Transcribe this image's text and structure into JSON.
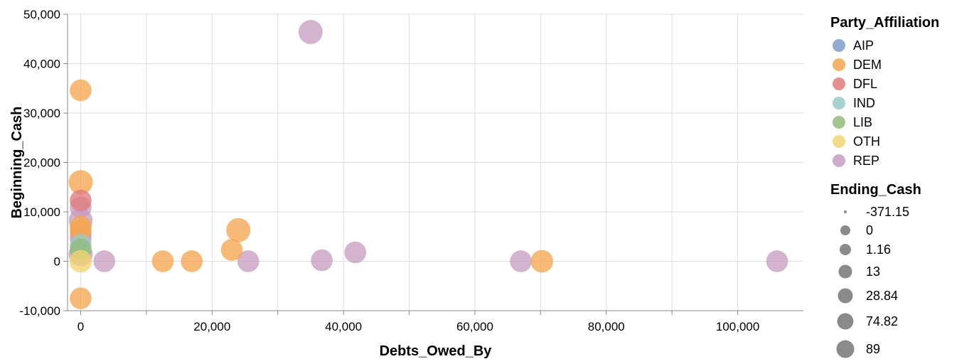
{
  "chart_data": {
    "type": "scatter",
    "xlabel": "Debts_Owed_By",
    "ylabel": "Beginning_Cash",
    "xlim": [
      -2000,
      110000
    ],
    "ylim": [
      -10000,
      50000
    ],
    "x_ticks": [
      0,
      20000,
      40000,
      60000,
      80000,
      100000
    ],
    "x_tick_labels": [
      "0",
      "20,000",
      "40,000",
      "60,000",
      "80,000",
      "100,000"
    ],
    "y_ticks": [
      -10000,
      0,
      10000,
      20000,
      30000,
      40000,
      50000
    ],
    "y_tick_labels": [
      "-10,000",
      "0",
      "10,000",
      "20,000",
      "30,000",
      "40,000",
      "50,000"
    ],
    "grid": true,
    "color_legend": {
      "title": "Party_Affiliation",
      "position": "right",
      "entries": [
        {
          "label": "AIP",
          "color": "#7f9dc9"
        },
        {
          "label": "DEM",
          "color": "#f3a64f"
        },
        {
          "label": "DFL",
          "color": "#e07b7b"
        },
        {
          "label": "IND",
          "color": "#96cac9"
        },
        {
          "label": "LIB",
          "color": "#8fbc7a"
        },
        {
          "label": "OTH",
          "color": "#f2d46e"
        },
        {
          "label": "REP",
          "color": "#c79ec0"
        }
      ]
    },
    "size_legend": {
      "title": "Ending_Cash",
      "position": "right",
      "entries": [
        {
          "label": "-371.15",
          "value": -371.15
        },
        {
          "label": "0",
          "value": 0
        },
        {
          "label": "1.16",
          "value": 1.16
        },
        {
          "label": "13",
          "value": 13
        },
        {
          "label": "28.84",
          "value": 28.84
        },
        {
          "label": "74.82",
          "value": 74.82
        },
        {
          "label": "89",
          "value": 89
        }
      ]
    },
    "series": [
      {
        "name": "REP",
        "points": [
          {
            "x": 35000,
            "y": 46400,
            "size": 89
          },
          {
            "x": 0,
            "y": 8300,
            "size": 74.82
          },
          {
            "x": 0,
            "y": 1400,
            "size": 89
          },
          {
            "x": 0,
            "y": 10900,
            "size": 1.16
          },
          {
            "x": 0,
            "y": 5500,
            "size": 1.16
          },
          {
            "x": 0,
            "y": 4500,
            "size": 1.16
          },
          {
            "x": 3600,
            "y": 0,
            "size": 1.16
          },
          {
            "x": 25500,
            "y": 0,
            "size": 1.16
          },
          {
            "x": 36700,
            "y": 200,
            "size": 1.16
          },
          {
            "x": 41800,
            "y": 1800,
            "size": 1.16
          },
          {
            "x": 67000,
            "y": 0,
            "size": 1.16
          },
          {
            "x": 106000,
            "y": 0,
            "size": 1.16
          }
        ]
      },
      {
        "name": "DEM",
        "points": [
          {
            "x": 0,
            "y": 34600,
            "size": 0
          },
          {
            "x": 0,
            "y": 16000,
            "size": 89
          },
          {
            "x": 24000,
            "y": 6300,
            "size": 89
          },
          {
            "x": 0,
            "y": 7000,
            "size": 1.16
          },
          {
            "x": 0,
            "y": 6200,
            "size": 1.16
          },
          {
            "x": 23000,
            "y": 2300,
            "size": 1.16
          },
          {
            "x": 12500,
            "y": 0,
            "size": 1.16
          },
          {
            "x": 16900,
            "y": 0,
            "size": 1.16
          },
          {
            "x": 70200,
            "y": 0,
            "size": 28.84
          },
          {
            "x": 0,
            "y": -7500,
            "size": 0
          }
        ]
      },
      {
        "name": "DFL",
        "points": [
          {
            "x": 0,
            "y": 12300,
            "size": 1.16
          }
        ]
      },
      {
        "name": "IND",
        "points": [
          {
            "x": 0,
            "y": 3300,
            "size": 0
          }
        ]
      },
      {
        "name": "LIB",
        "points": [
          {
            "x": 0,
            "y": 2400,
            "size": 0
          }
        ]
      },
      {
        "name": "OTH",
        "points": [
          {
            "x": 0,
            "y": 0,
            "size": 28.84
          }
        ]
      }
    ]
  }
}
